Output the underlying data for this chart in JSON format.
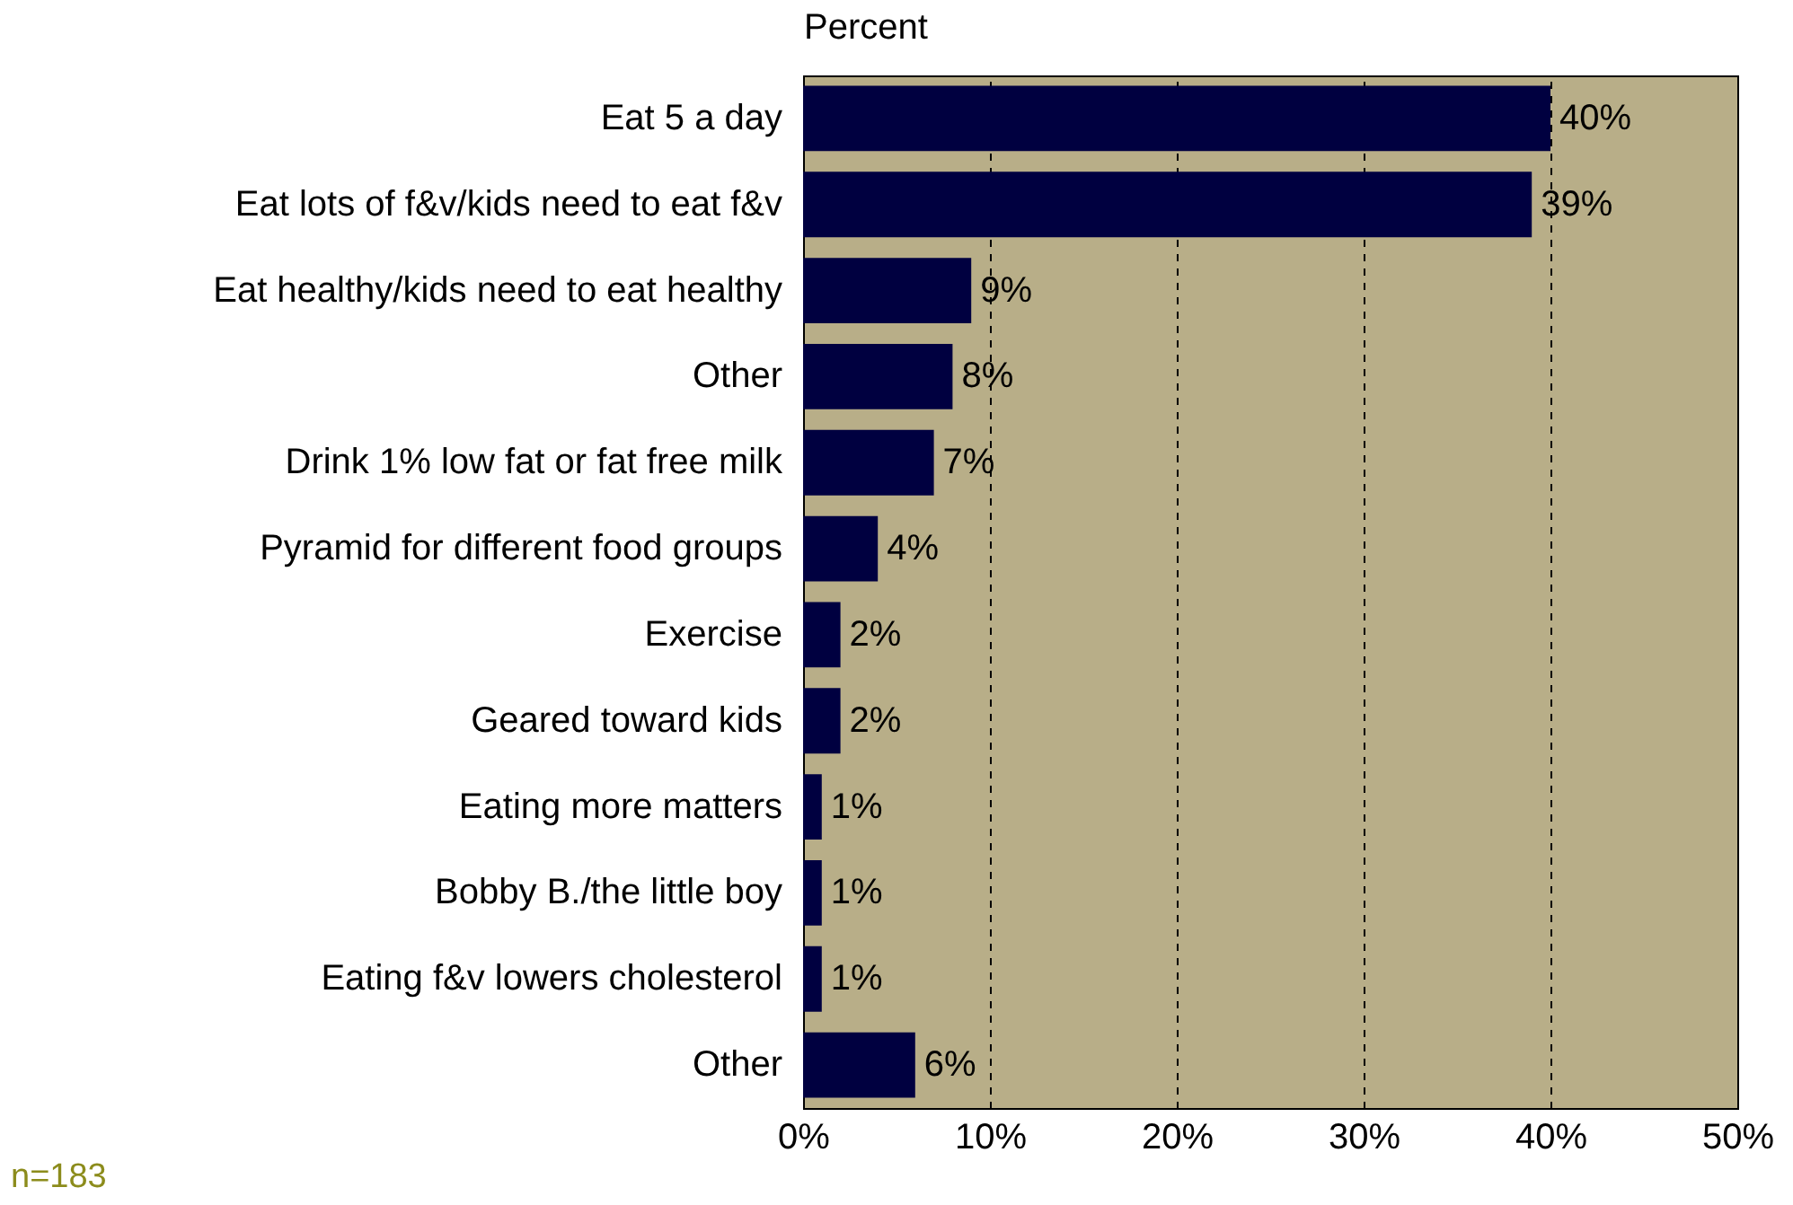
{
  "chart_data": {
    "type": "bar",
    "orientation": "horizontal",
    "xlabel": "Percent",
    "categories": [
      "Eat 5 a day",
      "Eat lots of f&v/kids need to eat f&v",
      "Eat healthy/kids need to eat healthy",
      "Other",
      "Drink 1% low fat or fat free milk",
      "Pyramid for different food groups",
      "Exercise",
      "Geared toward kids",
      "Eating more matters",
      "Bobby B./the little boy",
      "Eating f&v lowers cholesterol",
      "Other"
    ],
    "values": [
      40,
      39,
      9,
      8,
      7,
      4,
      2,
      2,
      1,
      1,
      1,
      6
    ],
    "value_labels": [
      "40%",
      "39%",
      "9%",
      "8%",
      "7%",
      "4%",
      "2%",
      "2%",
      "1%",
      "1%",
      "1%",
      "6%"
    ],
    "color": "#000040",
    "xlim": [
      0,
      50
    ],
    "xticks": [
      {
        "value": 0,
        "label": "0%"
      },
      {
        "value": 10,
        "label": "10%"
      },
      {
        "value": 20,
        "label": "20%"
      },
      {
        "value": 30,
        "label": "30%"
      },
      {
        "value": 40,
        "label": "40%"
      },
      {
        "value": 50,
        "label": "50%"
      }
    ],
    "grid": "x",
    "annotations": [
      "n=183"
    ]
  }
}
